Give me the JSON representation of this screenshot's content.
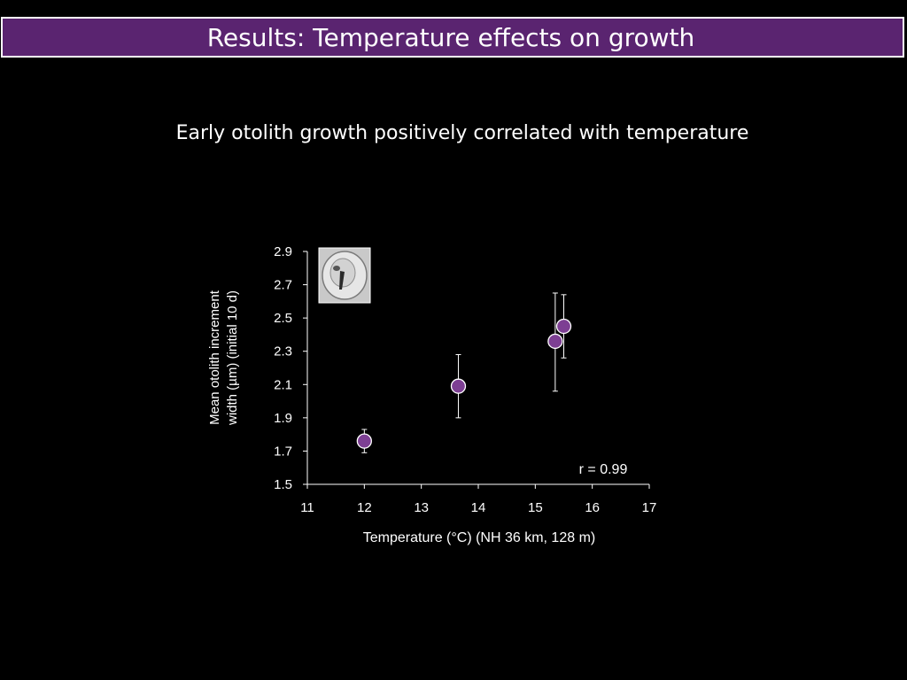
{
  "slide": {
    "title": "Results: Temperature effects on growth",
    "subtitle": "Early otolith growth positively correlated with temperature"
  },
  "colors": {
    "background": "#000000",
    "title_bar": "#5a2470",
    "marker_fill": "#7d3f93",
    "text": "#ffffff"
  },
  "inset_image": {
    "icon": "otolith-micrograph"
  },
  "chart_data": {
    "type": "scatter",
    "xlabel": "Temperature (°C) (NH 36 km, 128 m)",
    "ylabel_lines": [
      "Mean otolith increment",
      "width (µm) (initial 10 d)"
    ],
    "xlim": [
      11,
      17
    ],
    "ylim": [
      1.5,
      2.9
    ],
    "x_ticks": [
      11,
      12,
      13,
      14,
      15,
      16,
      17
    ],
    "y_ticks": [
      "1.5",
      "1.7",
      "1.9",
      "2.1",
      "2.3",
      "2.5",
      "2.7",
      "2.9"
    ],
    "grid": false,
    "points": [
      {
        "x": 12.0,
        "y": 1.76,
        "err_low": 1.69,
        "err_high": 1.83
      },
      {
        "x": 13.65,
        "y": 2.09,
        "err_low": 1.9,
        "err_high": 2.28
      },
      {
        "x": 15.35,
        "y": 2.36,
        "err_low": 2.06,
        "err_high": 2.65
      },
      {
        "x": 15.5,
        "y": 2.45,
        "err_low": 2.26,
        "err_high": 2.64
      }
    ],
    "annotation": "r = 0.99"
  }
}
